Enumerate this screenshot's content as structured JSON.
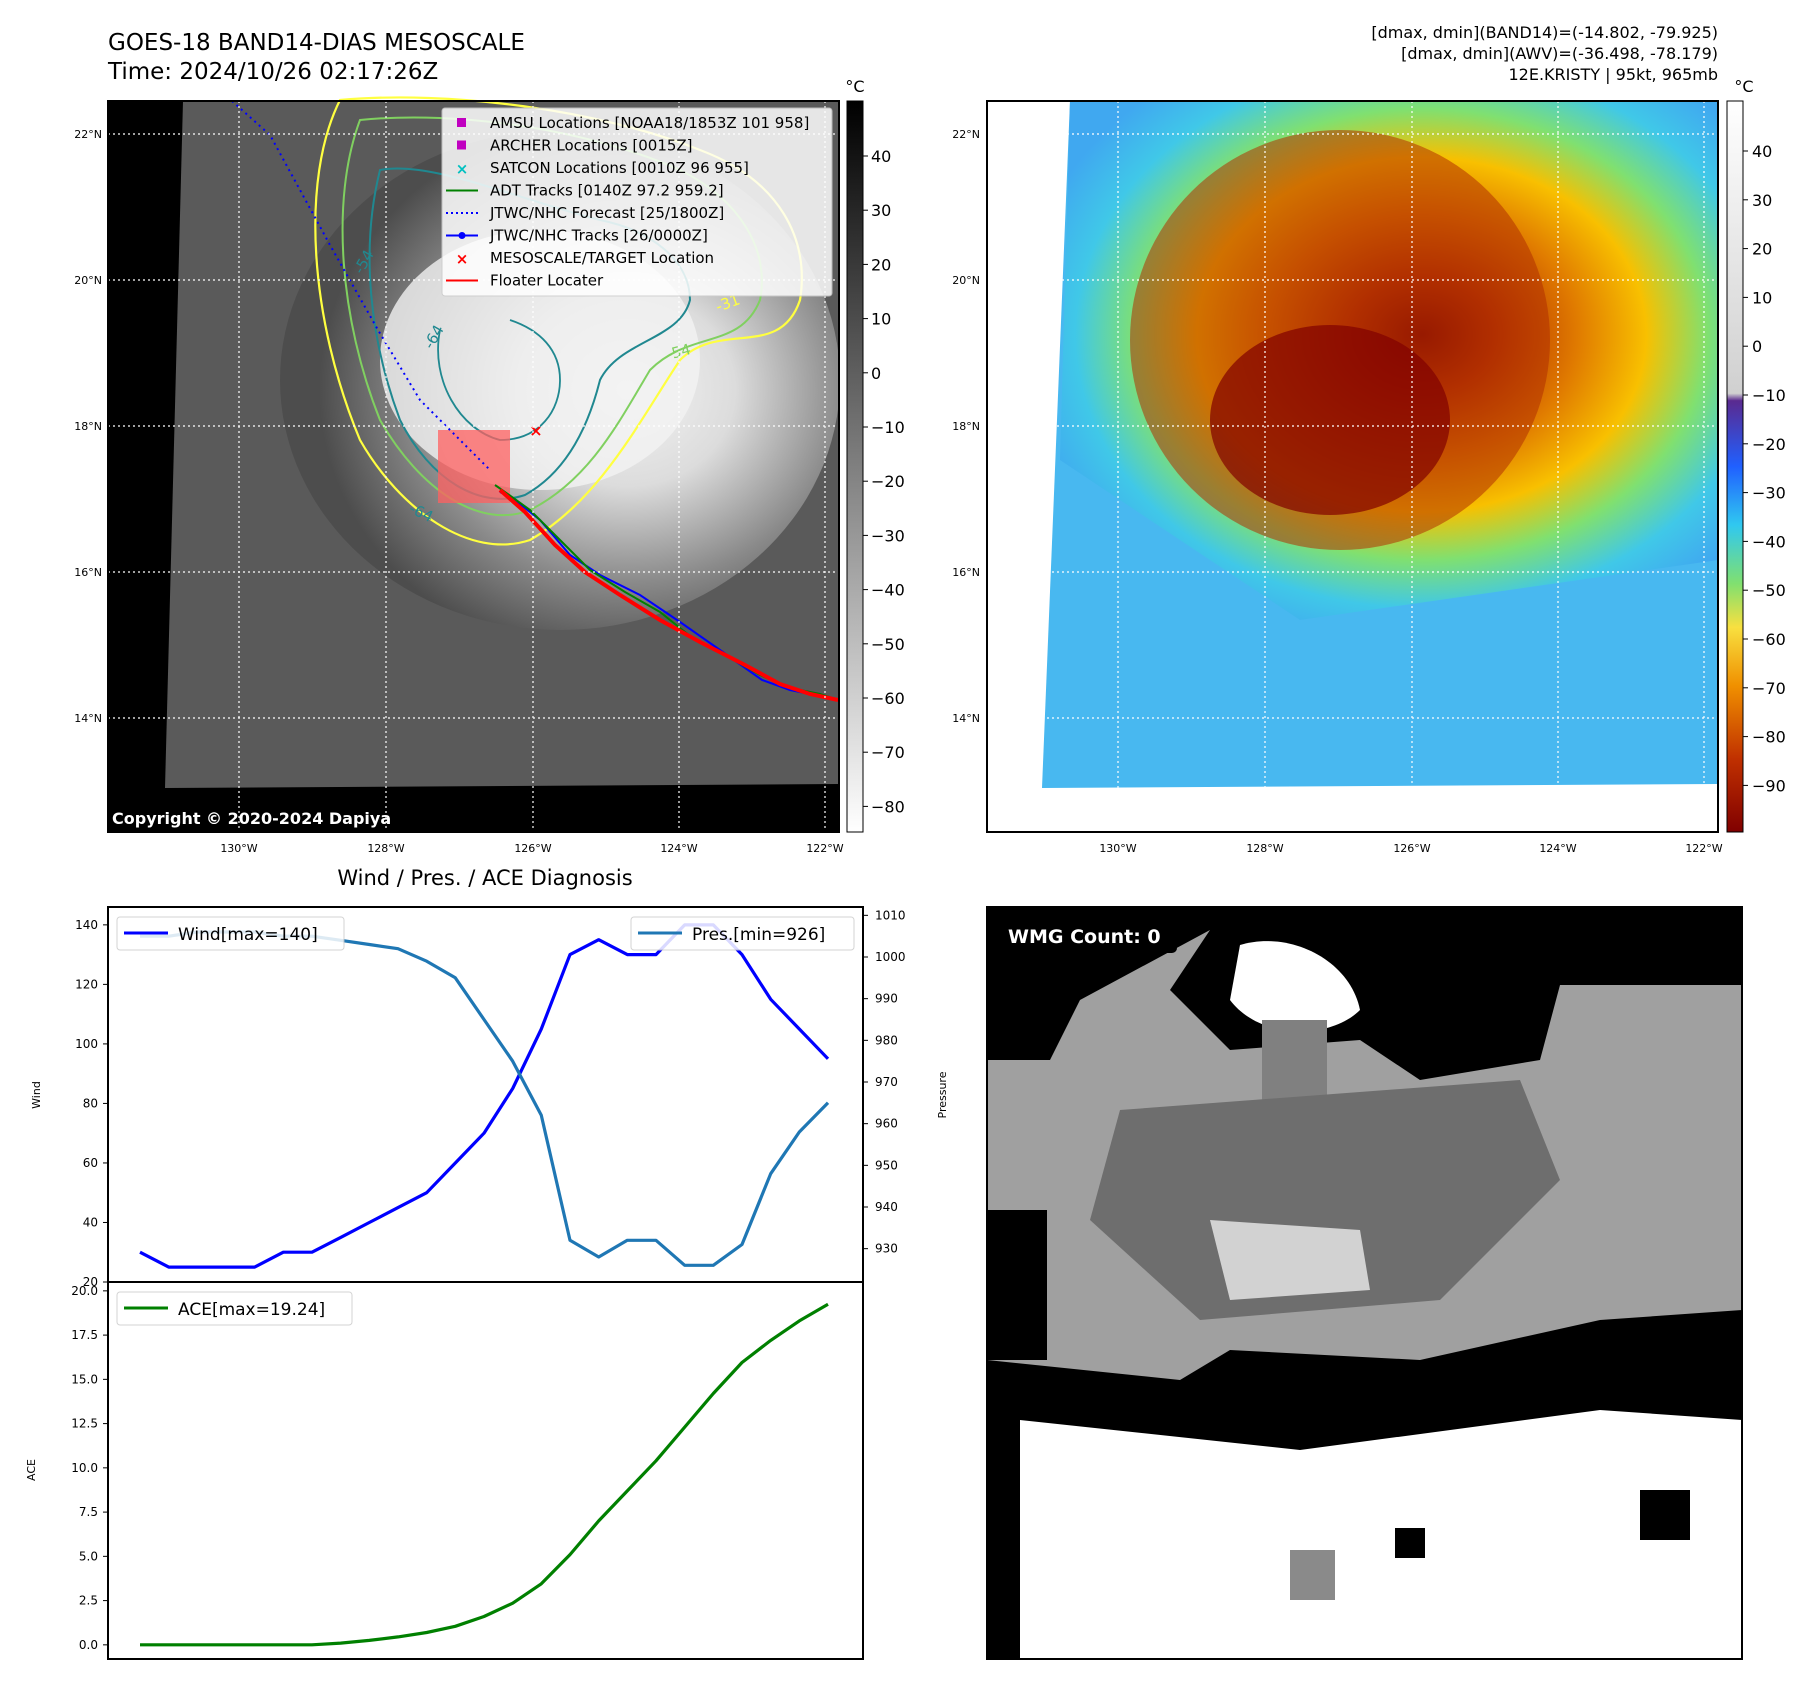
{
  "header": {
    "title_line1": "GOES-18 BAND14-DIAS MESOSCALE",
    "title_line2": "Time: 2024/10/26 02:17:26Z",
    "stats_line1": "[dmax, dmin](BAND14)=(-14.802, -79.925)",
    "stats_line2": "[dmax, dmin](AWV)=(-36.498, -78.179)",
    "stats_line3": "12E.KRISTY | 95kt, 965mb"
  },
  "ir_map": {
    "copyright": "Copyright © 2020-2024 Dapiya",
    "lon_labels": [
      "130°W",
      "128°W",
      "126°W",
      "124°W",
      "122°W"
    ],
    "lat_labels": [
      "22°N",
      "20°N",
      "18°N",
      "16°N",
      "14°N"
    ],
    "contour_labels": [
      "-54",
      "-64",
      "-54",
      "-64",
      "-31"
    ],
    "colorbar_unit": "°C",
    "colorbar_ticks": [
      "40",
      "30",
      "20",
      "10",
      "0",
      "−10",
      "−20",
      "−30",
      "−40",
      "−50",
      "−60",
      "−70",
      "−80"
    ],
    "legend": [
      {
        "label": "AMSU Locations [NOAA18/1853Z 101 958]",
        "color": "#c000c0",
        "symbol": "square"
      },
      {
        "label": "ARCHER Locations [0015Z]",
        "color": "#c000c0",
        "symbol": "square"
      },
      {
        "label": "SATCON Locations [0010Z 96 955]",
        "color": "#00c0c0",
        "symbol": "x"
      },
      {
        "label": "ADT Tracks [0140Z 97.2 959.2]",
        "color": "#008000",
        "symbol": "line"
      },
      {
        "label": "JTWC/NHC Forecast [25/1800Z]",
        "color": "#0000ff",
        "symbol": "dotted"
      },
      {
        "label": "JTWC/NHC Tracks [26/0000Z]",
        "color": "#0000ff",
        "symbol": "line-dot"
      },
      {
        "label": "MESOSCALE/TARGET Location",
        "color": "#ff0000",
        "symbol": "x"
      },
      {
        "label": "Floater Locater",
        "color": "#ff0000",
        "symbol": "line"
      }
    ]
  },
  "wv_map": {
    "lon_labels": [
      "130°W",
      "128°W",
      "126°W",
      "124°W",
      "122°W"
    ],
    "lat_labels": [
      "22°N",
      "20°N",
      "18°N",
      "16°N",
      "14°N"
    ],
    "colorbar_unit": "°C",
    "colorbar_ticks": [
      "40",
      "30",
      "20",
      "10",
      "0",
      "−10",
      "−20",
      "−30",
      "−40",
      "−50",
      "−60",
      "−70",
      "−80",
      "−90"
    ]
  },
  "wmg": {
    "label": "WMG Count: 0"
  },
  "chart_data": [
    {
      "type": "line",
      "title": "Wind / Pres. / ACE Diagnosis",
      "ylabel": "Wind",
      "ylabel_right": "Pressure",
      "ylim": [
        20,
        146
      ],
      "ylim_right": [
        922,
        1012
      ],
      "yticks": [
        20,
        40,
        60,
        80,
        100,
        120,
        140
      ],
      "yticks_right": [
        930,
        940,
        950,
        960,
        970,
        980,
        990,
        1000,
        1010
      ],
      "x": [
        0,
        1,
        2,
        3,
        4,
        5,
        6,
        7,
        8,
        9,
        10,
        11,
        12,
        13,
        14,
        15,
        16,
        17,
        18,
        19,
        20,
        21,
        22,
        23,
        24
      ],
      "series": [
        {
          "name": "Wind[max=140]",
          "color": "#0000ff",
          "axis": "left",
          "values": [
            30,
            25,
            25,
            25,
            25,
            30,
            30,
            35,
            40,
            45,
            50,
            60,
            70,
            85,
            105,
            130,
            135,
            130,
            130,
            140,
            140,
            130,
            115,
            105,
            95
          ]
        },
        {
          "name": "Pres.[min=926]",
          "color": "#1f77b4",
          "axis": "right",
          "values": [
            1005,
            1005,
            1006,
            1006,
            1006,
            1005,
            1005,
            1004,
            1003,
            1002,
            999,
            995,
            985,
            975,
            962,
            932,
            928,
            932,
            932,
            926,
            926,
            931,
            948,
            958,
            965
          ]
        }
      ]
    },
    {
      "type": "line",
      "ylabel": "ACE",
      "ylim": [
        -0.8,
        20.5
      ],
      "yticks": [
        0.0,
        2.5,
        5.0,
        7.5,
        10.0,
        12.5,
        15.0,
        17.5,
        20.0
      ],
      "ytick_labels": [
        "0.0",
        "2.5",
        "5.0",
        "7.5",
        "10.0",
        "12.5",
        "15.0",
        "17.5",
        "20.0"
      ],
      "x": [
        0,
        1,
        2,
        3,
        4,
        5,
        6,
        7,
        8,
        9,
        10,
        11,
        12,
        13,
        14,
        15,
        16,
        17,
        18,
        19,
        20,
        21,
        22,
        23,
        24
      ],
      "series": [
        {
          "name": "ACE[max=19.24]",
          "color": "#008000",
          "values": [
            0,
            0,
            0,
            0,
            0,
            0,
            0,
            0.1,
            0.25,
            0.45,
            0.7,
            1.05,
            1.6,
            2.35,
            3.45,
            5.1,
            7.0,
            8.7,
            10.4,
            12.3,
            14.2,
            15.95,
            17.2,
            18.3,
            19.24
          ]
        }
      ]
    }
  ]
}
